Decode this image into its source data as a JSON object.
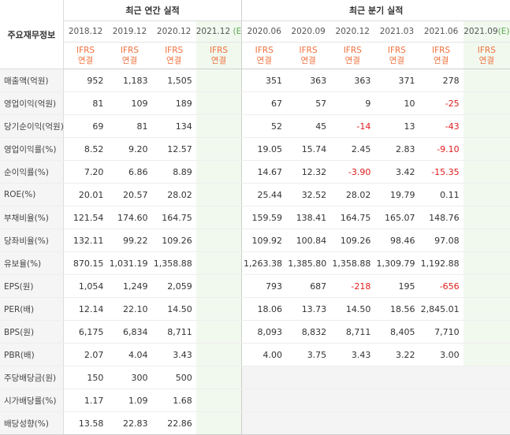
{
  "header": {
    "row_label": "주요재무정보",
    "annual_group": "최근 연간 실적",
    "quarter_group": "최근 분기 실적",
    "annual_periods": [
      "2018.12",
      "2019.12",
      "2020.12",
      "2021.12"
    ],
    "annual_est_marker": "(E)",
    "quarter_periods": [
      "2020.06",
      "2020.09",
      "2020.12",
      "2021.03",
      "2021.06",
      "2021.09"
    ],
    "quarter_est_marker": "(E)",
    "ifrs_line1": "IFRS",
    "ifrs_line2": "연결"
  },
  "rows": [
    {
      "label": "매출액(억원)",
      "annual": [
        "952",
        "1,183",
        "1,505",
        ""
      ],
      "quarter": [
        "351",
        "363",
        "363",
        "371",
        "278",
        ""
      ]
    },
    {
      "label": "영업이익(억원)",
      "annual": [
        "81",
        "109",
        "189",
        ""
      ],
      "quarter": [
        "67",
        "57",
        "9",
        "10",
        "-25",
        ""
      ]
    },
    {
      "label": "당기순이익(억원)",
      "annual": [
        "69",
        "81",
        "134",
        ""
      ],
      "quarter": [
        "52",
        "45",
        "-14",
        "13",
        "-43",
        ""
      ]
    },
    {
      "label": "영업이익률(%)",
      "annual": [
        "8.52",
        "9.20",
        "12.57",
        ""
      ],
      "quarter": [
        "19.05",
        "15.74",
        "2.45",
        "2.83",
        "-9.10",
        ""
      ]
    },
    {
      "label": "순이익률(%)",
      "annual": [
        "7.20",
        "6.86",
        "8.89",
        ""
      ],
      "quarter": [
        "14.67",
        "12.32",
        "-3.90",
        "3.42",
        "-15.35",
        ""
      ]
    },
    {
      "label": "ROE(%)",
      "annual": [
        "20.01",
        "20.57",
        "28.02",
        ""
      ],
      "quarter": [
        "25.44",
        "32.52",
        "28.02",
        "19.79",
        "0.11",
        ""
      ]
    },
    {
      "label": "부채비율(%)",
      "annual": [
        "121.54",
        "174.60",
        "164.75",
        ""
      ],
      "quarter": [
        "159.59",
        "138.41",
        "164.75",
        "165.07",
        "148.76",
        ""
      ]
    },
    {
      "label": "당좌비율(%)",
      "annual": [
        "132.11",
        "99.22",
        "109.26",
        ""
      ],
      "quarter": [
        "109.92",
        "100.84",
        "109.26",
        "98.46",
        "97.08",
        ""
      ]
    },
    {
      "label": "유보율(%)",
      "annual": [
        "870.15",
        "1,031.19",
        "1,358.88",
        ""
      ],
      "quarter": [
        "1,263.38",
        "1,385.80",
        "1,358.88",
        "1,309.79",
        "1,192.88",
        ""
      ]
    },
    {
      "label": "EPS(원)",
      "annual": [
        "1,054",
        "1,249",
        "2,059",
        ""
      ],
      "quarter": [
        "793",
        "687",
        "-218",
        "195",
        "-656",
        ""
      ]
    },
    {
      "label": "PER(배)",
      "annual": [
        "12.14",
        "22.10",
        "14.50",
        ""
      ],
      "quarter": [
        "18.06",
        "13.73",
        "14.50",
        "18.56",
        "2,845.01",
        ""
      ]
    },
    {
      "label": "BPS(원)",
      "annual": [
        "6,175",
        "6,834",
        "8,711",
        ""
      ],
      "quarter": [
        "8,093",
        "8,832",
        "8,711",
        "8,405",
        "7,710",
        ""
      ]
    },
    {
      "label": "PBR(배)",
      "annual": [
        "2.07",
        "4.04",
        "3.43",
        ""
      ],
      "quarter": [
        "4.00",
        "3.75",
        "3.43",
        "3.22",
        "3.00",
        ""
      ]
    },
    {
      "label": "주당배당금(원)",
      "annual": [
        "150",
        "300",
        "500",
        ""
      ],
      "quarter": [
        "",
        "",
        "",
        "",
        "",
        ""
      ]
    },
    {
      "label": "시가배당률(%)",
      "annual": [
        "1.17",
        "1.09",
        "1.68",
        ""
      ],
      "quarter": [
        "",
        "",
        "",
        "",
        "",
        ""
      ]
    },
    {
      "label": "배당성향(%)",
      "annual": [
        "13.58",
        "22.83",
        "22.86",
        ""
      ],
      "quarter": [
        "",
        "",
        "",
        "",
        "",
        ""
      ]
    }
  ],
  "colors": {
    "negative": "#e01c1c",
    "ifrs": "#f0703c",
    "estimate_bg": "#f1f9ef",
    "estimate_text": "#5aa64c"
  }
}
